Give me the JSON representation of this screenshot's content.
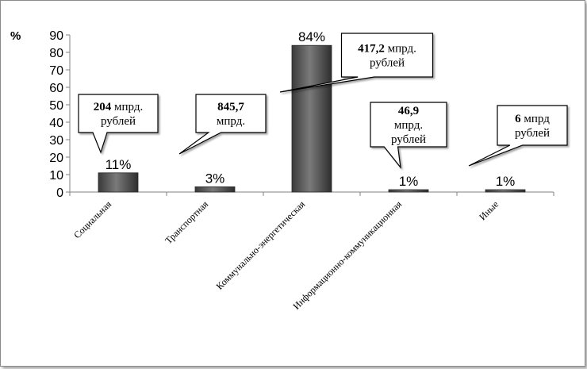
{
  "chart_data": {
    "type": "bar",
    "categories": [
      "Социальная",
      "Транспортная",
      "Коммунально-энергетическая",
      "Информационно-коммуникационная",
      "Иные"
    ],
    "values": [
      11,
      3,
      84,
      1,
      1
    ],
    "data_labels": [
      "11%",
      "3%",
      "84%",
      "1%",
      "1%"
    ],
    "ylabel": "%",
    "ylim": [
      0,
      90
    ],
    "yticks": [
      0,
      10,
      20,
      30,
      40,
      50,
      60,
      70,
      80,
      90
    ],
    "grid": false,
    "callouts": [
      {
        "value": "204",
        "rest": " мпрд.",
        "line2": "рублей"
      },
      {
        "value": "845,7",
        "rest": "",
        "line2": "мпрд."
      },
      {
        "value": "417,2",
        "rest": " мпрд.",
        "line2": "рублей"
      },
      {
        "value": "46,9",
        "rest": "",
        "line2": "мпрд.",
        "line3": "рублей"
      },
      {
        "value": "6",
        "rest": " мпрд",
        "line2": "рублей"
      }
    ],
    "colors": {
      "bar": "#4a4a4a",
      "bar_light": "#8a8a8a",
      "axis": "#808080"
    }
  }
}
